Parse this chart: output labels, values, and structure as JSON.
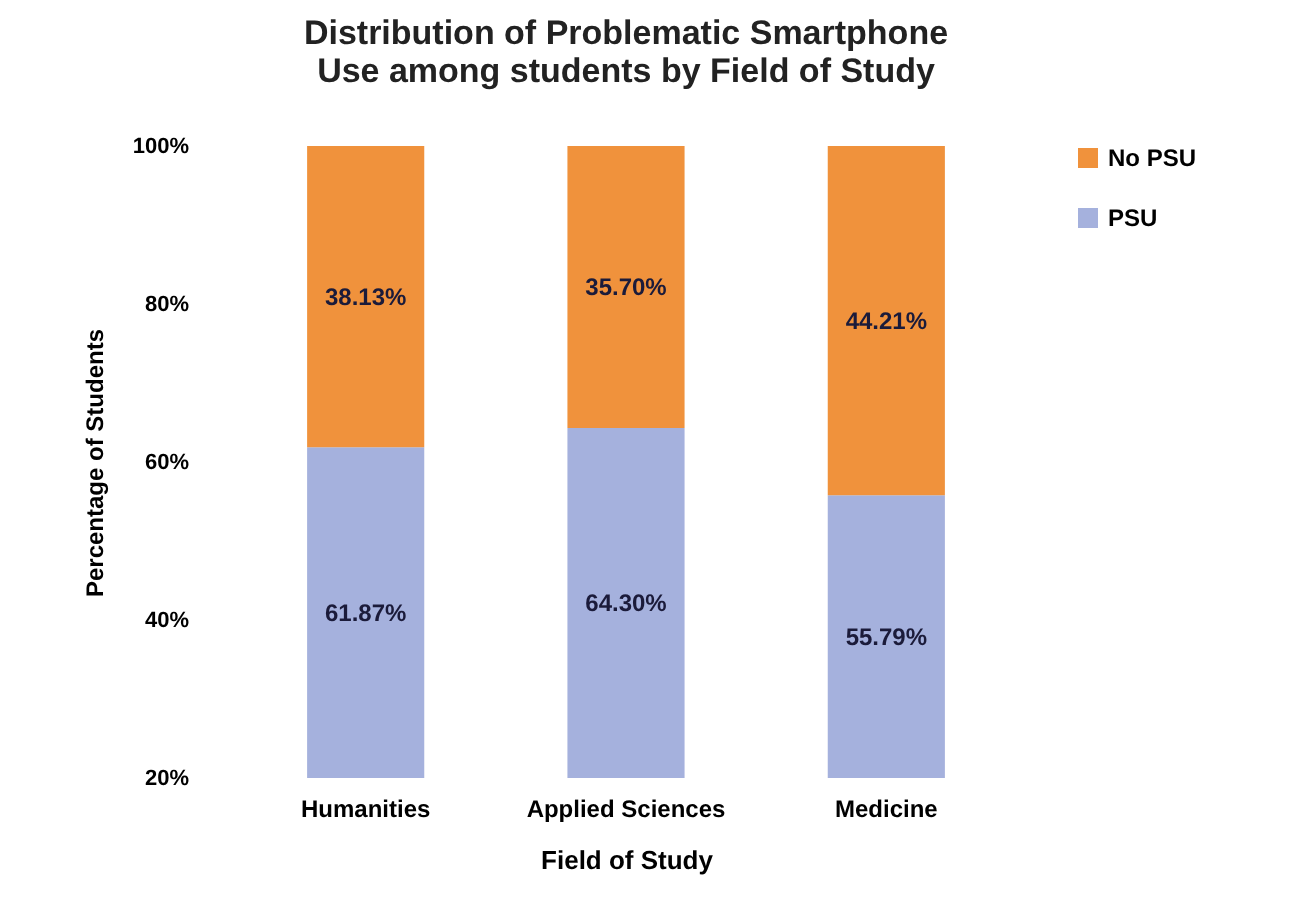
{
  "chart_data": {
    "type": "bar",
    "stacked": true,
    "title": "Distribution of Problematic Smartphone Use among students by Field of Study",
    "xlabel": "Field of Study",
    "ylabel": "Percentage of Students",
    "categories": [
      "Humanities",
      "Applied Sciences",
      "Medicine"
    ],
    "series": [
      {
        "name": "PSU",
        "color": "#a5b1dd",
        "values": [
          61.87,
          64.3,
          55.79
        ],
        "value_labels": [
          "61.87%",
          "64.30%",
          "55.79%"
        ]
      },
      {
        "name": "No PSU",
        "color": "#f0923c",
        "values": [
          38.13,
          35.7,
          44.21
        ],
        "value_labels": [
          "38.13%",
          "35.70%",
          "44.21%"
        ]
      }
    ],
    "ylim": [
      20,
      100
    ],
    "yticks": [
      {
        "value": 20,
        "label": "20%"
      },
      {
        "value": 40,
        "label": "40%"
      },
      {
        "value": 60,
        "label": "60%"
      },
      {
        "value": 80,
        "label": "80%"
      },
      {
        "value": 100,
        "label": "100%"
      }
    ],
    "legend": "right",
    "grid": false
  }
}
